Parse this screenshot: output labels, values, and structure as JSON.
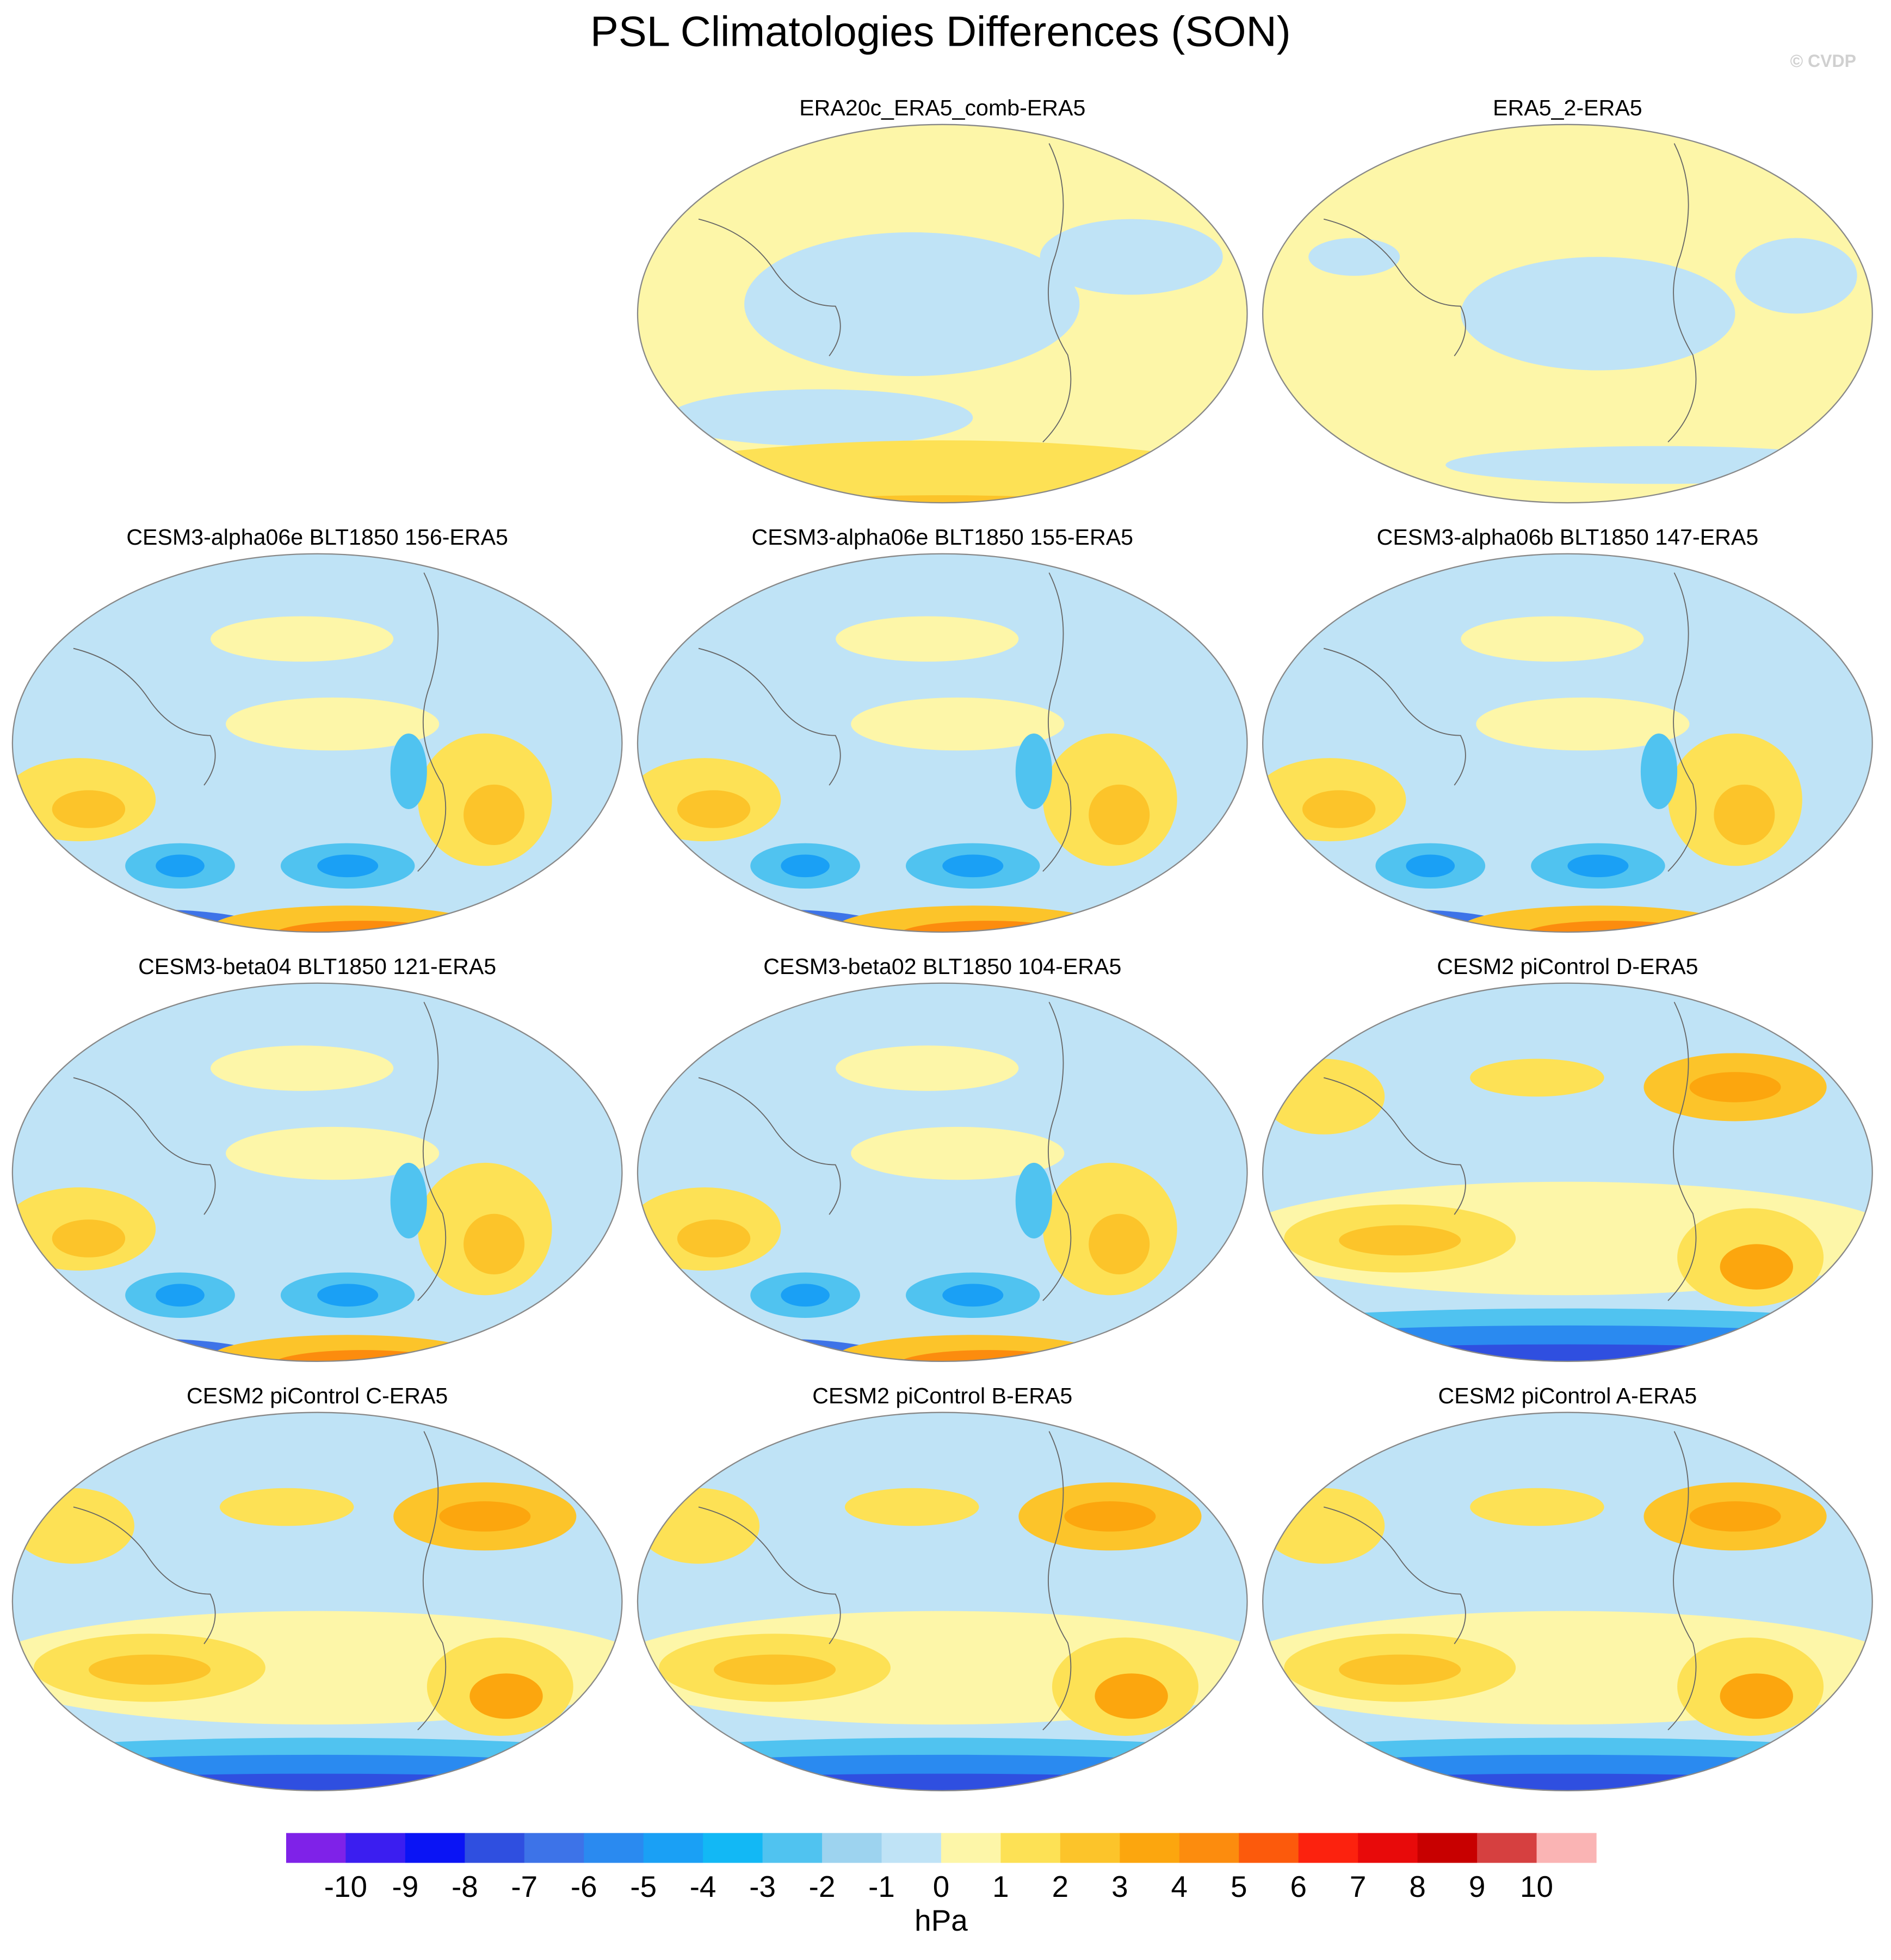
{
  "title": "PSL Climatologies Differences (SON)",
  "watermark": "© CVDP",
  "panels": [
    "ERA20c_ERA5_comb-ERA5",
    "ERA5_2-ERA5",
    "CESM3-alpha06e BLT1850 156-ERA5",
    "CESM3-alpha06e BLT1850 155-ERA5",
    "CESM3-alpha06b BLT1850 147-ERA5",
    "CESM3-beta04 BLT1850 121-ERA5",
    "CESM3-beta02 BLT1850 104-ERA5",
    "CESM2 piControl D-ERA5",
    "CESM2 piControl C-ERA5",
    "CESM2 piControl B-ERA5",
    "CESM2 piControl A-ERA5"
  ],
  "colorbar": {
    "colors": [
      "#7f22e8",
      "#3b1ef0",
      "#0a14f5",
      "#2f4fe0",
      "#3d73e8",
      "#2a8af0",
      "#1aa0f5",
      "#12b8f5",
      "#50c3f0",
      "#9dd3ef",
      "#bfe3f6",
      "#fdf6a8",
      "#fde155",
      "#fcc42a",
      "#fca60e",
      "#fc8c0e",
      "#fc5a0c",
      "#fc220e",
      "#e80a0a",
      "#c80000",
      "#d64040",
      "#fab4b4"
    ],
    "ticks": [
      -10,
      -9,
      -8,
      -7,
      -6,
      -5,
      -4,
      -3,
      -2,
      -1,
      0,
      1,
      2,
      3,
      4,
      5,
      6,
      7,
      8,
      9,
      10
    ],
    "label": "hPa"
  }
}
